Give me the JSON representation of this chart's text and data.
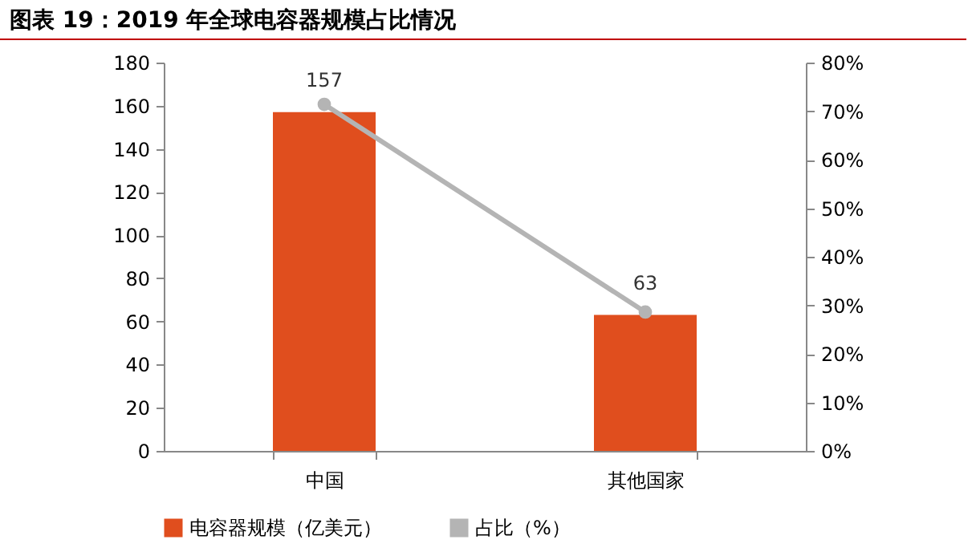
{
  "chart_data": {
    "type": "bar",
    "title": "图表 19：2019 年全球电容器规模占比情况",
    "categories": [
      "中国",
      "其他国家"
    ],
    "series": [
      {
        "name": "电容器规模（亿美元）",
        "color": "#e04e1e",
        "values": [
          157,
          63
        ],
        "value_labels": [
          "157",
          "63"
        ]
      },
      {
        "name": "占比（%）",
        "type": "line",
        "axis": "y2",
        "color": "#b4b4b4",
        "values": [
          71.4,
          28.6
        ]
      }
    ],
    "ylim": [
      0,
      180
    ],
    "yticks": [
      0,
      20,
      40,
      60,
      80,
      100,
      120,
      140,
      160,
      180
    ],
    "y2lim": [
      0,
      80
    ],
    "y2ticks": [
      {
        "value": 0,
        "label": "0%"
      },
      {
        "value": 10,
        "label": "10%"
      },
      {
        "value": 20,
        "label": "20%"
      },
      {
        "value": 30,
        "label": "30%"
      },
      {
        "value": 40,
        "label": "40%"
      },
      {
        "value": 50,
        "label": "50%"
      },
      {
        "value": 60,
        "label": "60%"
      },
      {
        "value": 70,
        "label": "70%"
      },
      {
        "value": 80,
        "label": "80%"
      }
    ],
    "grid": false,
    "legend": "bottom",
    "marker": "circle",
    "line_style": "solid"
  }
}
